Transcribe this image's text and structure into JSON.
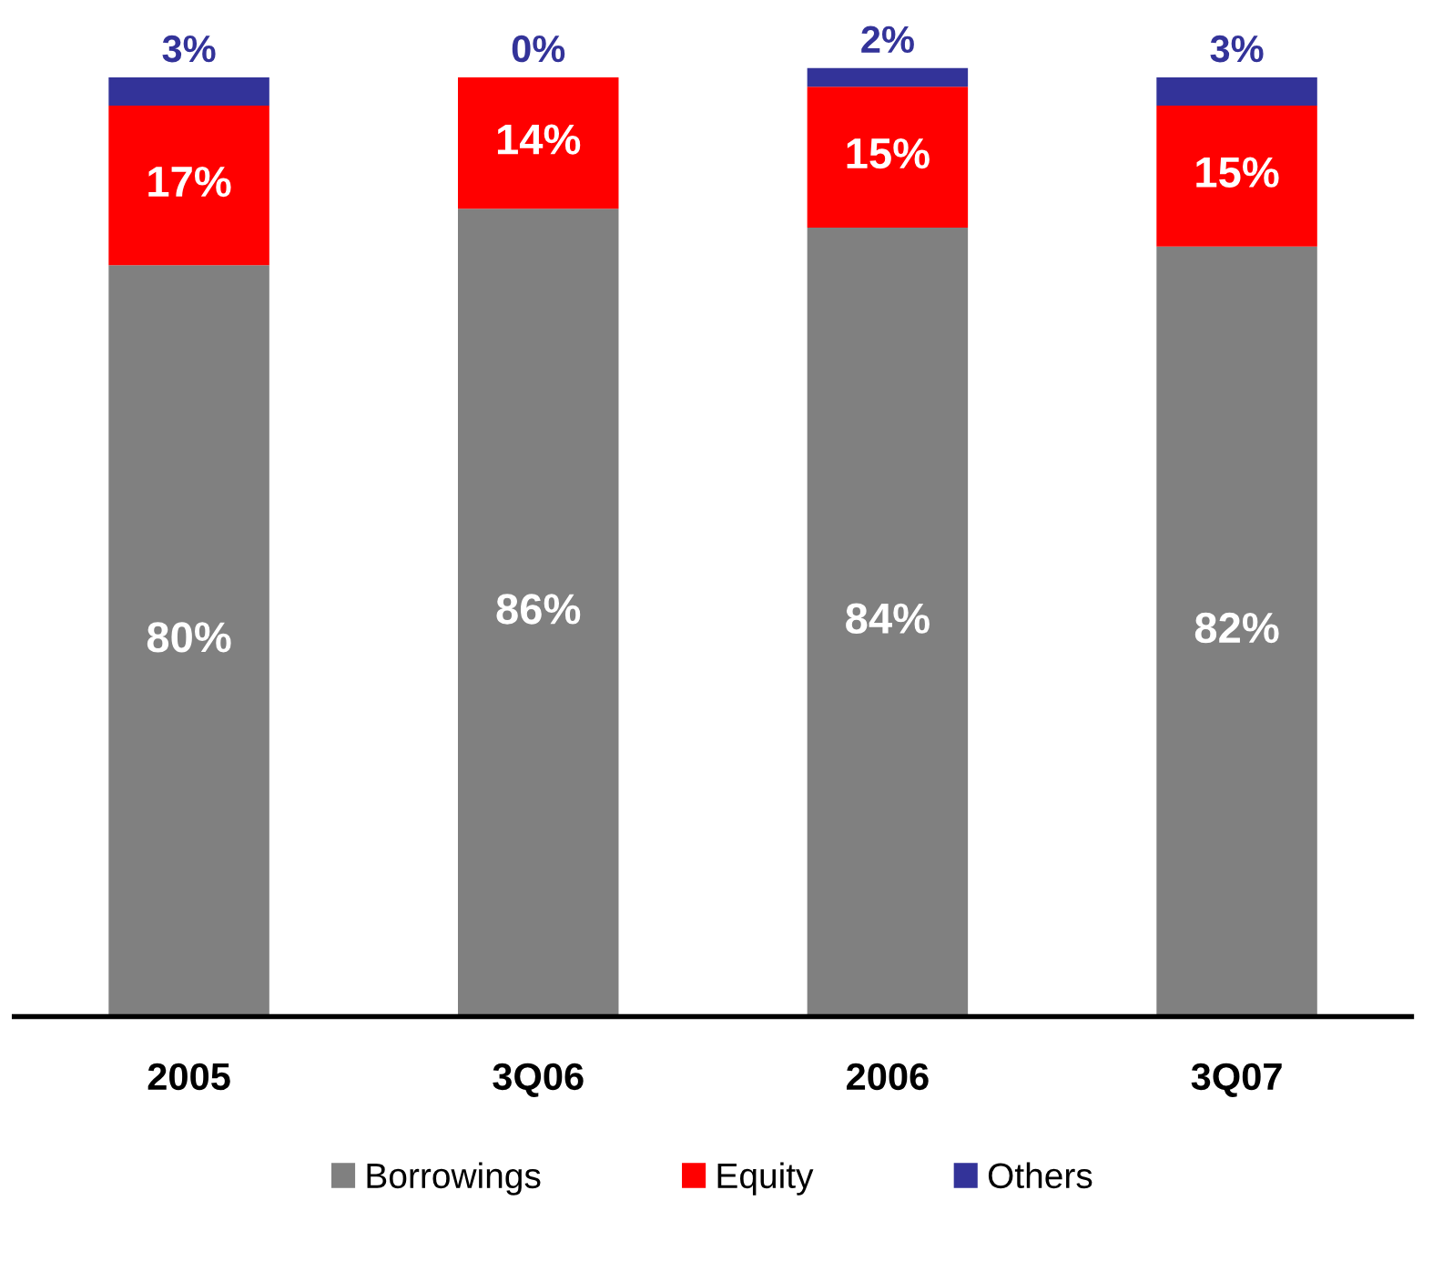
{
  "chart_data": {
    "type": "bar",
    "stacked": true,
    "categories": [
      "2005",
      "3Q06",
      "2006",
      "3Q07"
    ],
    "series": [
      {
        "name": "Borrowings",
        "color": "#808080",
        "values": [
          80,
          86,
          84,
          82
        ],
        "value_labels": [
          "80%",
          "86%",
          "84%",
          "82%"
        ]
      },
      {
        "name": "Equity",
        "color": "#ff0000",
        "values": [
          17,
          14,
          15,
          15
        ],
        "value_labels": [
          "17%",
          "14%",
          "15%",
          "15%"
        ]
      },
      {
        "name": "Others",
        "color": "#333399",
        "values": [
          3,
          0,
          2,
          3
        ],
        "value_labels": [
          "3%",
          "0%",
          "2%",
          "3%"
        ]
      }
    ],
    "tick_labels": "x",
    "legend": "bottom",
    "grid": false
  }
}
